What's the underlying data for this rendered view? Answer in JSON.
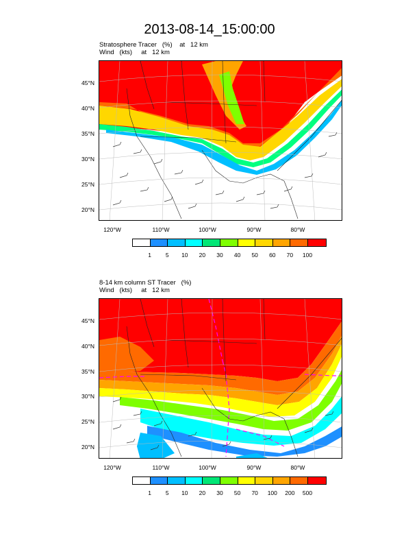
{
  "title": "2013-08-14_15:00:00",
  "panels": [
    {
      "subtitle_line1": "Stratosphere Tracer   (%)    at   12 km",
      "subtitle_line2": "Wind   (kts)     at   12 km",
      "colorbar_labels": [
        "1",
        "5",
        "10",
        "20",
        "30",
        "40",
        "50",
        "60",
        "70",
        "100"
      ]
    },
    {
      "subtitle_line1": "8-14 km column ST Tracer   (%)",
      "subtitle_line2": "Wind   (kts)     at   12 km",
      "colorbar_labels": [
        "1",
        "5",
        "10",
        "20",
        "30",
        "50",
        "70",
        "100",
        "200",
        "500"
      ]
    }
  ],
  "lat_labels": [
    "45°N",
    "40°N",
    "35°N",
    "30°N",
    "25°N",
    "20°N"
  ],
  "lon_labels": [
    "120°W",
    "110°W",
    "100°W",
    "90°W",
    "80°W"
  ],
  "colors": {
    "levels": [
      "#ffffff",
      "#1e90ff",
      "#00bfff",
      "#00ffff",
      "#00e676",
      "#7fff00",
      "#ffff00",
      "#ffd700",
      "#ffa500",
      "#ff6a00",
      "#ff0000"
    ]
  }
}
